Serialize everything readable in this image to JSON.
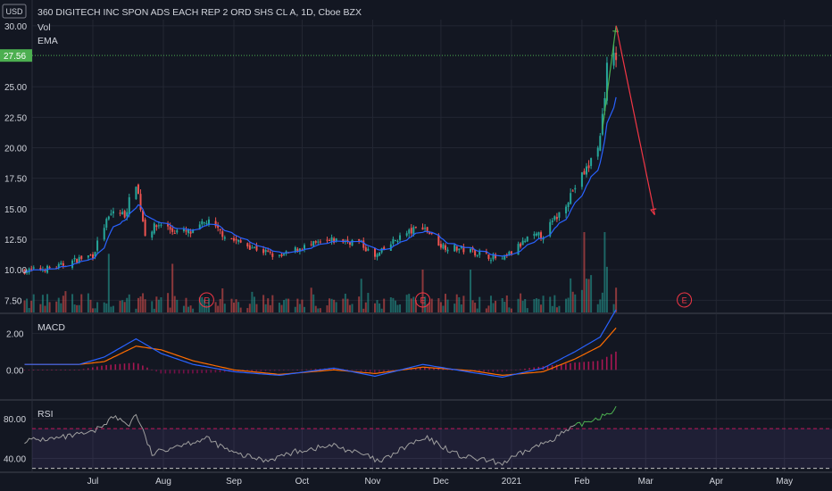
{
  "header": {
    "currency": "USD",
    "title": "360 DIGITECH INC SPON ADS EACH REP 2 ORD SHS CL A, 1D, Cboe BZX",
    "indicators": [
      "Vol",
      "EMA"
    ]
  },
  "price_axis": {
    "ticks": [
      "30.00",
      "27.56",
      "25.00",
      "22.50",
      "20.00",
      "17.50",
      "15.00",
      "12.50",
      "10.00",
      "7.50"
    ],
    "last_price": "27.56"
  },
  "macd": {
    "label": "MACD",
    "ticks": [
      "2.00",
      "0.00"
    ]
  },
  "rsi": {
    "label": "RSI",
    "ticks": [
      "80.00",
      "40.00"
    ]
  },
  "time_axis": {
    "labels": [
      "Jul",
      "Aug",
      "Sep",
      "Oct",
      "Nov",
      "Dec",
      "2021",
      "Feb",
      "Mar",
      "Apr",
      "May"
    ]
  },
  "earnings_marker": "E",
  "colors": {
    "background": "#131722",
    "up": "#26a69a",
    "down": "#ef5350",
    "ema": "#2962ff",
    "macd_line": "#2962ff",
    "signal_line": "#ff6d00",
    "rsi_line": "#9e9e9e",
    "rsi_band": "#7e57c2",
    "projection_up": "#4caf50",
    "projection_down": "#f23645",
    "last_price_badge": "#4caf50"
  },
  "chart_data": [
    {
      "type": "candlestick",
      "title": "360 DIGITECH INC SPON ADS EACH REP 2 ORD SHS CL A, 1D, Cboe BZX",
      "ylim": [
        6.5,
        30.5
      ],
      "close_points": [
        [
          "2020-06-01",
          9.9
        ],
        [
          "2020-06-15",
          10.2
        ],
        [
          "2020-06-25",
          10.9
        ],
        [
          "2020-07-01",
          11.2
        ],
        [
          "2020-07-06",
          13.6
        ],
        [
          "2020-07-10",
          14.8
        ],
        [
          "2020-07-15",
          14.5
        ],
        [
          "2020-07-20",
          17.2
        ],
        [
          "2020-07-24",
          13.0
        ],
        [
          "2020-07-31",
          13.8
        ],
        [
          "2020-08-05",
          13.2
        ],
        [
          "2020-08-14",
          13.0
        ],
        [
          "2020-08-20",
          14.0
        ],
        [
          "2020-08-25",
          13.2
        ],
        [
          "2020-09-01",
          12.4
        ],
        [
          "2020-09-10",
          11.8
        ],
        [
          "2020-09-21",
          11.0
        ],
        [
          "2020-09-30",
          11.8
        ],
        [
          "2020-10-15",
          12.4
        ],
        [
          "2020-10-26",
          12.3
        ],
        [
          "2020-11-02",
          11.0
        ],
        [
          "2020-11-12",
          12.6
        ],
        [
          "2020-11-23",
          13.6
        ],
        [
          "2020-12-01",
          12.0
        ],
        [
          "2020-12-15",
          11.5
        ],
        [
          "2020-12-28",
          10.8
        ],
        [
          "2021-01-08",
          12.5
        ],
        [
          "2021-01-15",
          12.9
        ],
        [
          "2021-01-22",
          14.6
        ],
        [
          "2021-01-29",
          16.8
        ],
        [
          "2021-02-04",
          18.5
        ],
        [
          "2021-02-09",
          20.8
        ],
        [
          "2021-02-12",
          26.5
        ],
        [
          "2021-02-16",
          27.56
        ]
      ],
      "annotations": {
        "projection_up": [
          [
            "2021-02-10",
            21.5
          ],
          [
            "2021-02-16",
            30.0
          ]
        ],
        "projection_down": [
          [
            "2021-02-16",
            30.0
          ],
          [
            "2021-03-05",
            14.5
          ]
        ],
        "earnings_dates": [
          "2020-08-20",
          "2020-11-23",
          "2021-03-18"
        ]
      }
    },
    {
      "type": "line",
      "title": "MACD",
      "ylim": [
        -1.6,
        3.0
      ],
      "series": [
        {
          "name": "MACD",
          "points": [
            [
              "2020-06-01",
              0.3
            ],
            [
              "2020-06-25",
              0.3
            ],
            [
              "2020-07-06",
              0.7
            ],
            [
              "2020-07-20",
              1.7
            ],
            [
              "2020-07-31",
              0.9
            ],
            [
              "2020-08-14",
              0.3
            ],
            [
              "2020-09-01",
              -0.1
            ],
            [
              "2020-09-21",
              -0.3
            ],
            [
              "2020-10-15",
              0.1
            ],
            [
              "2020-11-02",
              -0.35
            ],
            [
              "2020-11-23",
              0.3
            ],
            [
              "2020-12-15",
              -0.15
            ],
            [
              "2020-12-28",
              -0.4
            ],
            [
              "2021-01-15",
              0.1
            ],
            [
              "2021-01-29",
              1.0
            ],
            [
              "2021-02-09",
              1.8
            ],
            [
              "2021-02-16",
              3.3
            ]
          ]
        },
        {
          "name": "Signal",
          "points": [
            [
              "2020-06-01",
              0.3
            ],
            [
              "2020-06-25",
              0.3
            ],
            [
              "2020-07-06",
              0.45
            ],
            [
              "2020-07-20",
              1.3
            ],
            [
              "2020-07-31",
              1.1
            ],
            [
              "2020-08-14",
              0.5
            ],
            [
              "2020-09-01",
              0.0
            ],
            [
              "2020-09-21",
              -0.25
            ],
            [
              "2020-10-15",
              0.0
            ],
            [
              "2020-11-02",
              -0.2
            ],
            [
              "2020-11-23",
              0.15
            ],
            [
              "2020-12-15",
              -0.05
            ],
            [
              "2020-12-28",
              -0.3
            ],
            [
              "2021-01-15",
              -0.1
            ],
            [
              "2021-01-29",
              0.6
            ],
            [
              "2021-02-09",
              1.3
            ],
            [
              "2021-02-16",
              2.3
            ]
          ]
        }
      ]
    },
    {
      "type": "line",
      "title": "RSI",
      "ylim": [
        27,
        97
      ],
      "bands": [
        70,
        30
      ],
      "series": [
        {
          "name": "RSI",
          "points": [
            [
              "2020-06-01",
              58
            ],
            [
              "2020-06-15",
              60
            ],
            [
              "2020-07-01",
              66
            ],
            [
              "2020-07-10",
              82
            ],
            [
              "2020-07-17",
              74
            ],
            [
              "2020-07-20",
              85
            ],
            [
              "2020-07-27",
              44
            ],
            [
              "2020-08-05",
              52
            ],
            [
              "2020-08-20",
              60
            ],
            [
              "2020-09-01",
              45
            ],
            [
              "2020-09-15",
              38
            ],
            [
              "2020-09-30",
              48
            ],
            [
              "2020-10-15",
              53
            ],
            [
              "2020-10-30",
              42
            ],
            [
              "2020-11-04",
              36
            ],
            [
              "2020-11-18",
              55
            ],
            [
              "2020-11-25",
              60
            ],
            [
              "2020-12-10",
              42
            ],
            [
              "2020-12-28",
              35
            ],
            [
              "2021-01-08",
              48
            ],
            [
              "2021-01-15",
              55
            ],
            [
              "2021-01-29",
              72
            ],
            [
              "2021-02-09",
              82
            ],
            [
              "2021-02-16",
              90
            ]
          ]
        }
      ]
    }
  ]
}
